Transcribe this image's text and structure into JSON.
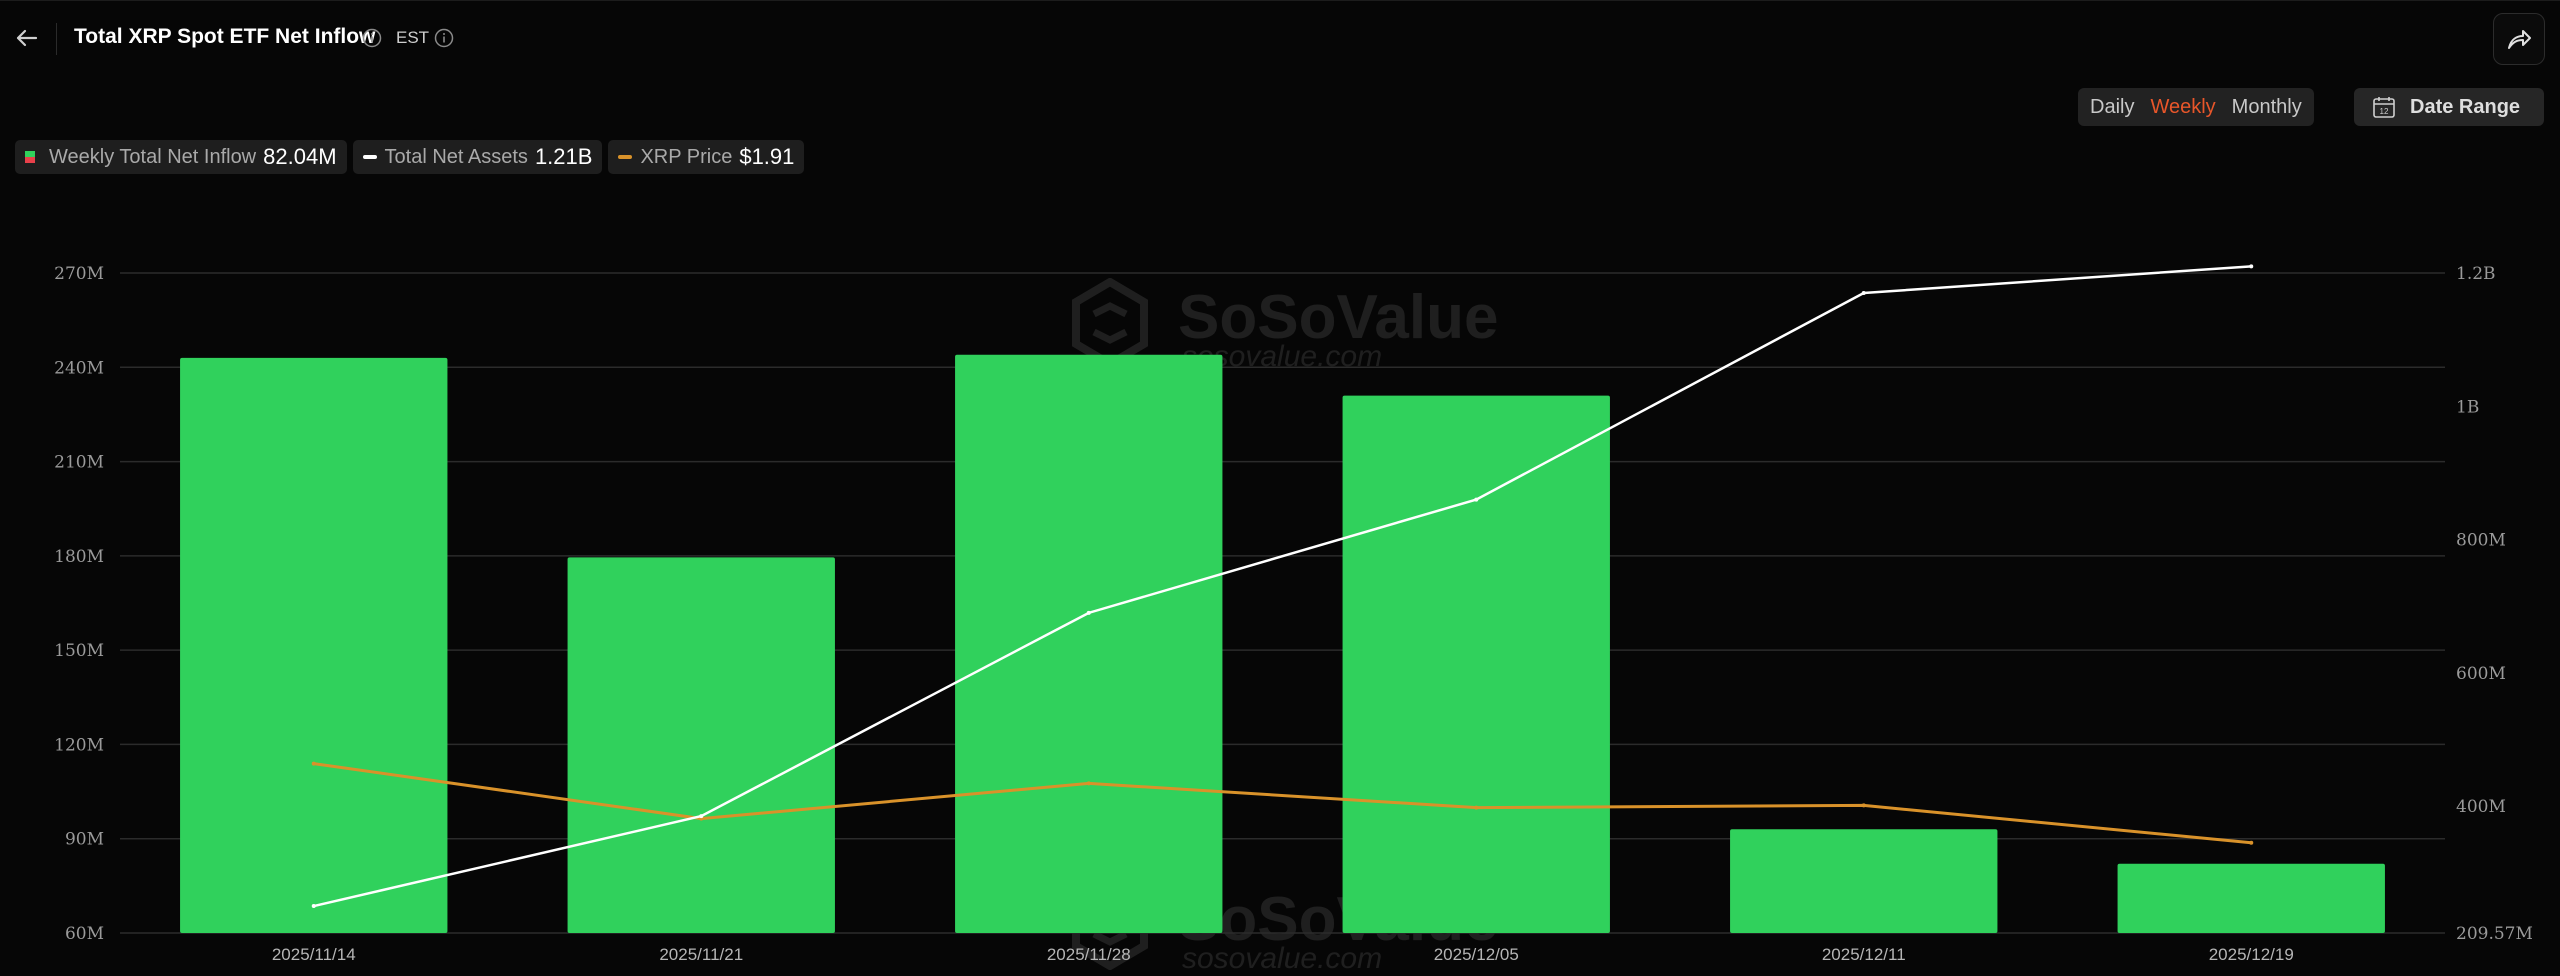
{
  "header": {
    "title": "Total XRP Spot ETF Net Inflow",
    "timezone": "EST"
  },
  "period_tabs": [
    "Daily",
    "Weekly",
    "Monthly"
  ],
  "active_period": "Weekly",
  "date_range_label": "Date Range",
  "legend": {
    "inflow_label": "Weekly Total Net Inflow",
    "inflow_value": "82.04M",
    "assets_label": "Total Net Assets",
    "assets_value": "1.21B",
    "price_label": "XRP Price",
    "price_value": "$1.91"
  },
  "watermark": {
    "brand": "SoSoValue",
    "site": "sosovalue.com"
  },
  "colors": {
    "bar": "#30d15c",
    "assets_line": "#ffffff",
    "price_line": "#d9922a",
    "accent": "#e8562a"
  },
  "icons": [
    "arrow-left-icon",
    "info-icon",
    "share-icon",
    "calendar-icon"
  ],
  "chart_data": {
    "type": "bar",
    "categories": [
      "2025/11/14",
      "2025/11/21",
      "2025/11/28",
      "2025/12/05",
      "2025/12/11",
      "2025/12/19"
    ],
    "series": [
      {
        "name": "Weekly Total Net Inflow",
        "type": "bar",
        "axis": "left",
        "values": [
          243000000,
          179500000,
          244000000,
          231000000,
          93000000,
          82040000
        ]
      },
      {
        "name": "Total Net Assets",
        "type": "line",
        "axis": "right",
        "values": [
          250000000,
          385000000,
          690000000,
          860000000,
          1170000000,
          1210000000
        ]
      },
      {
        "name": "XRP Price",
        "type": "line",
        "axis": "hidden",
        "values": [
          2.27,
          2.02,
          2.18,
          2.07,
          2.08,
          1.91
        ]
      }
    ],
    "y_left": {
      "ticks": [
        60000000,
        90000000,
        120000000,
        150000000,
        180000000,
        210000000,
        240000000,
        270000000
      ],
      "tick_labels": [
        "60M",
        "90M",
        "120M",
        "150M",
        "180M",
        "210M",
        "240M",
        "270M"
      ],
      "range": [
        60000000,
        270000000
      ]
    },
    "y_right": {
      "ticks": [
        209570000,
        400000000,
        600000000,
        800000000,
        1000000000,
        1200000000
      ],
      "tick_labels": [
        "209.57M",
        "400M",
        "600M",
        "800M",
        "1B",
        "1.2B"
      ],
      "range": [
        209570000,
        1200000000
      ]
    },
    "price_range": [
      1.5,
      4.5
    ],
    "grid": true
  }
}
